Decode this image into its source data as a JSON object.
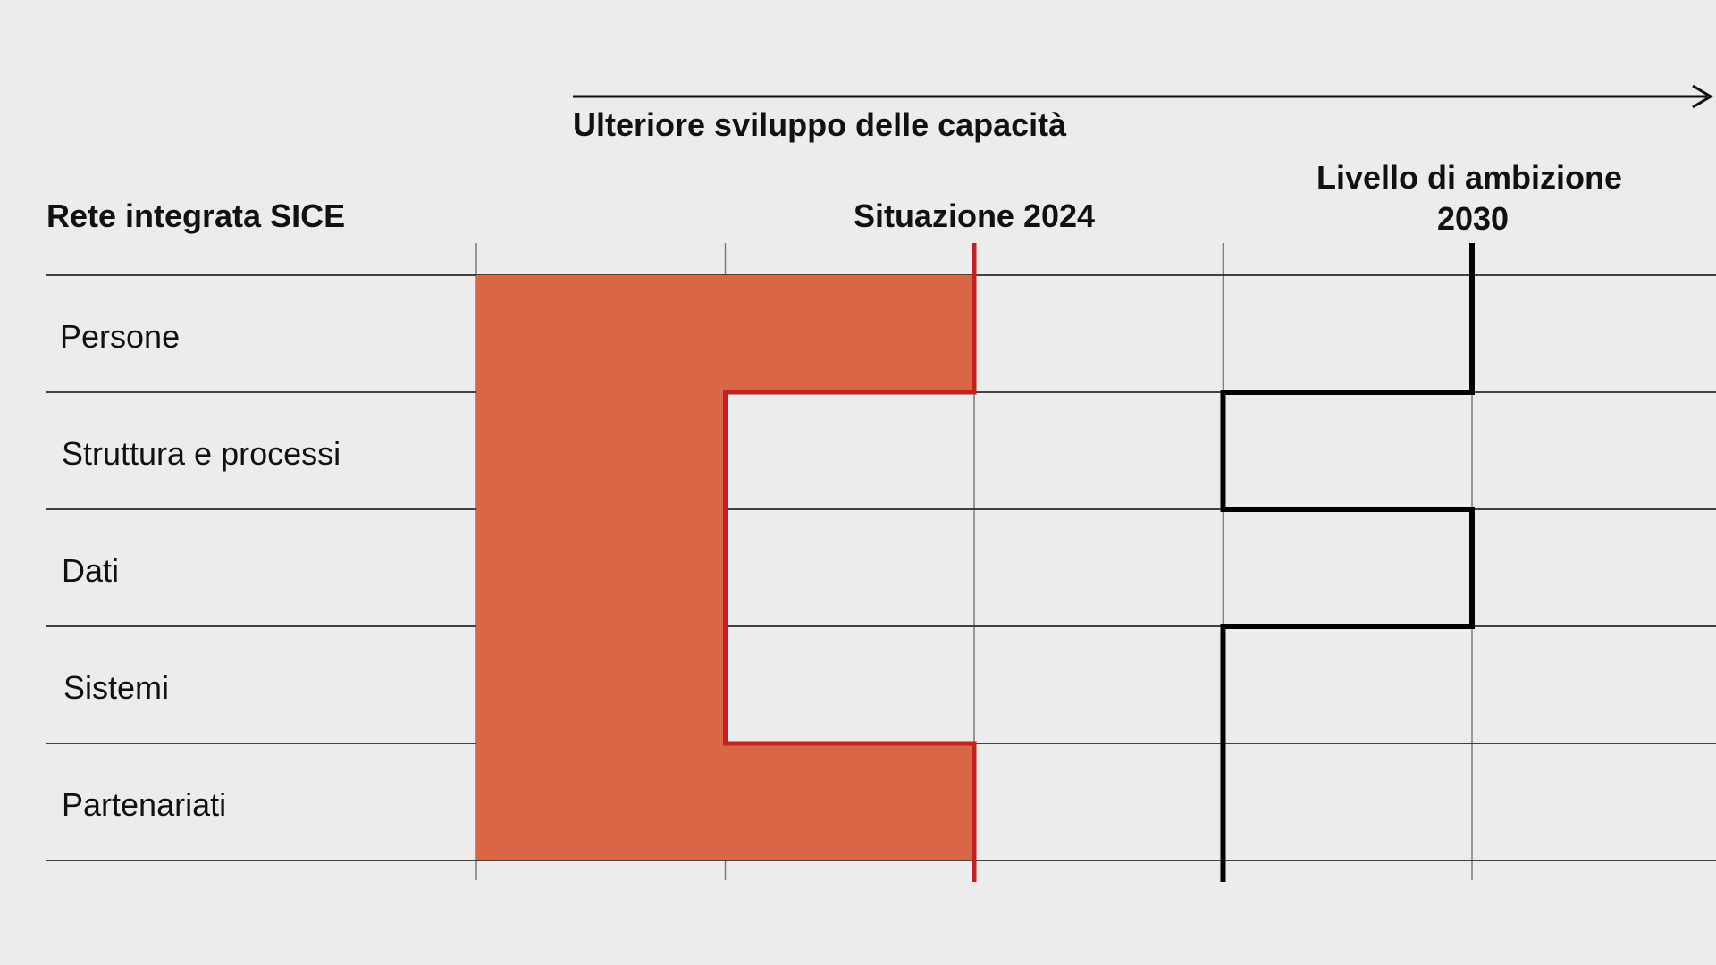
{
  "chart_data": {
    "type": "bar",
    "title": "Rete integrata SICE",
    "axis_label": "Ulteriore sviluppo delle capacità",
    "categories": [
      "Persone",
      "Struttura e processi",
      "Dati",
      "Sistemi",
      "Partenariati"
    ],
    "xlim": [
      0,
      5
    ],
    "grid": true,
    "series": [
      {
        "name": "Situazione 2024",
        "type": "bar",
        "values": [
          2,
          1,
          1,
          1,
          2
        ],
        "color": "#d96645",
        "line_color": "#c4221f"
      },
      {
        "name": "Livello di ambizione 2030",
        "type": "step",
        "values": [
          4,
          3,
          4,
          3,
          3
        ],
        "color": "#000000"
      }
    ],
    "markers": [
      {
        "label": "Situazione 2024",
        "x": 2,
        "color": "#c4221f"
      },
      {
        "label_lines": [
          "Livello di ambizione",
          "2030"
        ],
        "x": 4,
        "color": "#000000"
      }
    ]
  }
}
